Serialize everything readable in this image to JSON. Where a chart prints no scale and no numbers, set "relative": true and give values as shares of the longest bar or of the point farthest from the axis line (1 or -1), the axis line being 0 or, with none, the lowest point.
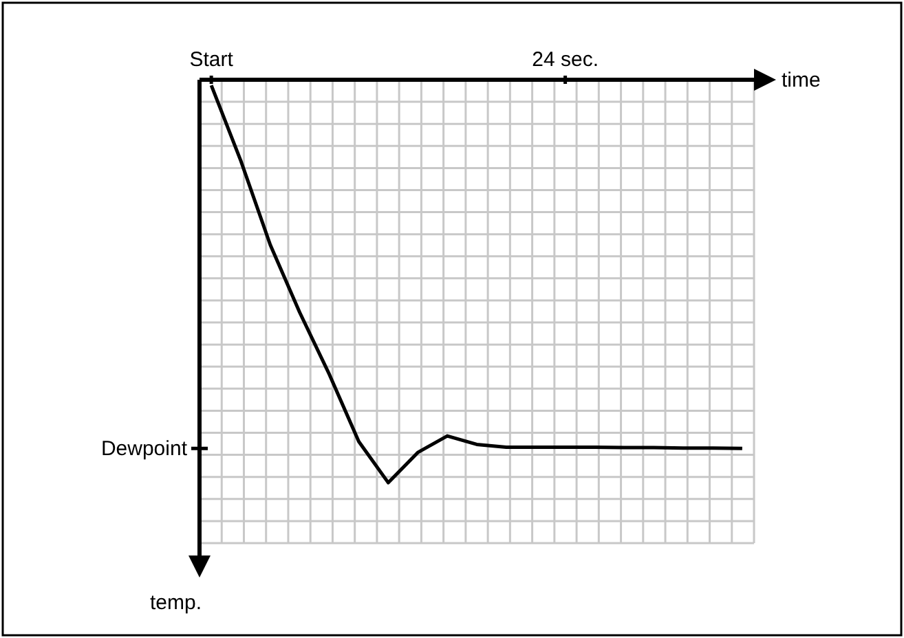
{
  "chart_data": {
    "type": "line",
    "relative": true,
    "xlabel": "time",
    "annotations": [
      "temp."
    ],
    "categories": [
      "Start",
      null,
      null,
      null,
      null,
      null,
      null,
      null,
      null,
      null,
      null,
      null,
      "24 sec.",
      null,
      null,
      null,
      null,
      null,
      null
    ],
    "series": [
      {
        "color": "#000000",
        "values": [
          -0.014,
          -0.201,
          -0.41,
          -0.578,
          -0.731,
          -0.898,
          -1,
          -0.925,
          -0.884,
          -0.905,
          -0.912,
          -0.912,
          -0.912,
          -0.912,
          -0.913,
          -0.913,
          -0.914,
          -0.914,
          -0.915
        ]
      }
    ],
    "ref_lines": [
      {
        "axis": "y",
        "value": -0.915,
        "label": "Dewpoint"
      }
    ],
    "grid": true,
    "marker": "none",
    "line_style": "solid"
  }
}
